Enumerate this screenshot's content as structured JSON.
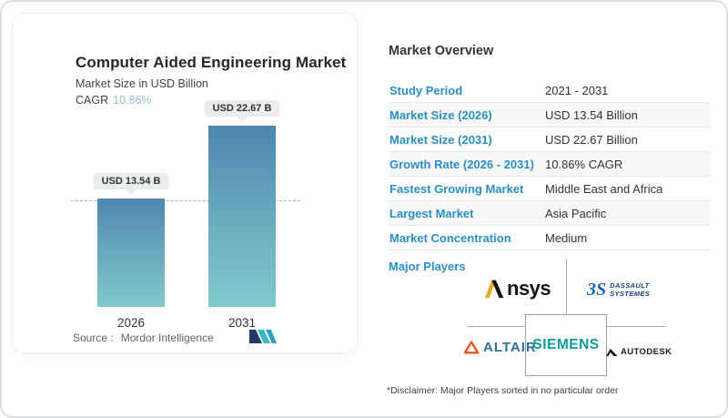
{
  "left_card": {
    "title": "Computer Aided Engineering Market",
    "subtitle": "Market Size in USD Billion",
    "cagr_label": "CAGR",
    "cagr_value": "10.86%",
    "source_label": "Source :",
    "source_value": "Mordor Intelligence",
    "logo": "mordor-intelligence-logo"
  },
  "chart_data": {
    "type": "bar",
    "title": "Computer Aided Engineering Market",
    "ylabel": "Market Size in USD Billion",
    "categories": [
      "2026",
      "2031"
    ],
    "values": [
      13.54,
      22.67
    ],
    "value_labels": [
      "USD 13.54 B",
      "USD 22.67 B"
    ],
    "unit": "USD Billion",
    "cagr": "10.86%",
    "reference_line_at": 13.54,
    "grid": false,
    "legend": "none",
    "bar_gradient": [
      "#4e86af",
      "#82c8cc"
    ]
  },
  "overview": {
    "title": "Market Overview",
    "rows": [
      {
        "label": "Study Period",
        "value": "2021 - 2031"
      },
      {
        "label": "Market Size (2026)",
        "value": "USD 13.54 Billion"
      },
      {
        "label": "Market Size (2031)",
        "value": "USD 22.67 Billion"
      },
      {
        "label": "Growth Rate (2026 - 2031)",
        "value": "10.86% CAGR"
      },
      {
        "label": "Fastest Growing Market",
        "value": "Middle East and Africa"
      },
      {
        "label": "Largest Market",
        "value": "Asia Pacific"
      },
      {
        "label": "Market Concentration",
        "value": "Medium"
      }
    ],
    "major_players_label": "Major Players",
    "disclaimer": "*Disclaimer: Major Players sorted in no particular order"
  },
  "players": {
    "list": [
      "Ansys",
      "Dassault Systemes",
      "Siemens",
      "Altair",
      "Autodesk"
    ],
    "ansys_wordmark_rest": "nsys",
    "dassault_line1": "DASSAULT",
    "dassault_line2": "SYSTEMES",
    "dassault_mark": "3S",
    "siemens": "SIEMENS",
    "altair": "ALTAIR",
    "autodesk": "AUTODESK"
  },
  "colors": {
    "accent_blue": "#2b8fc4",
    "cagr_blue": "#96bace",
    "bar_top": "#4e86af",
    "bar_bottom": "#82c8cc",
    "badge_bg": "#eaedee",
    "siemens_teal": "#0e9aa2",
    "altair_orange": "#e8532a",
    "altair_text_blue": "#2f7095",
    "dassault_navy": "#16437e",
    "ansys_gold": "#f0a81d",
    "mordor_navy": "#223a6d",
    "mordor_teal": "#38b6c9"
  }
}
